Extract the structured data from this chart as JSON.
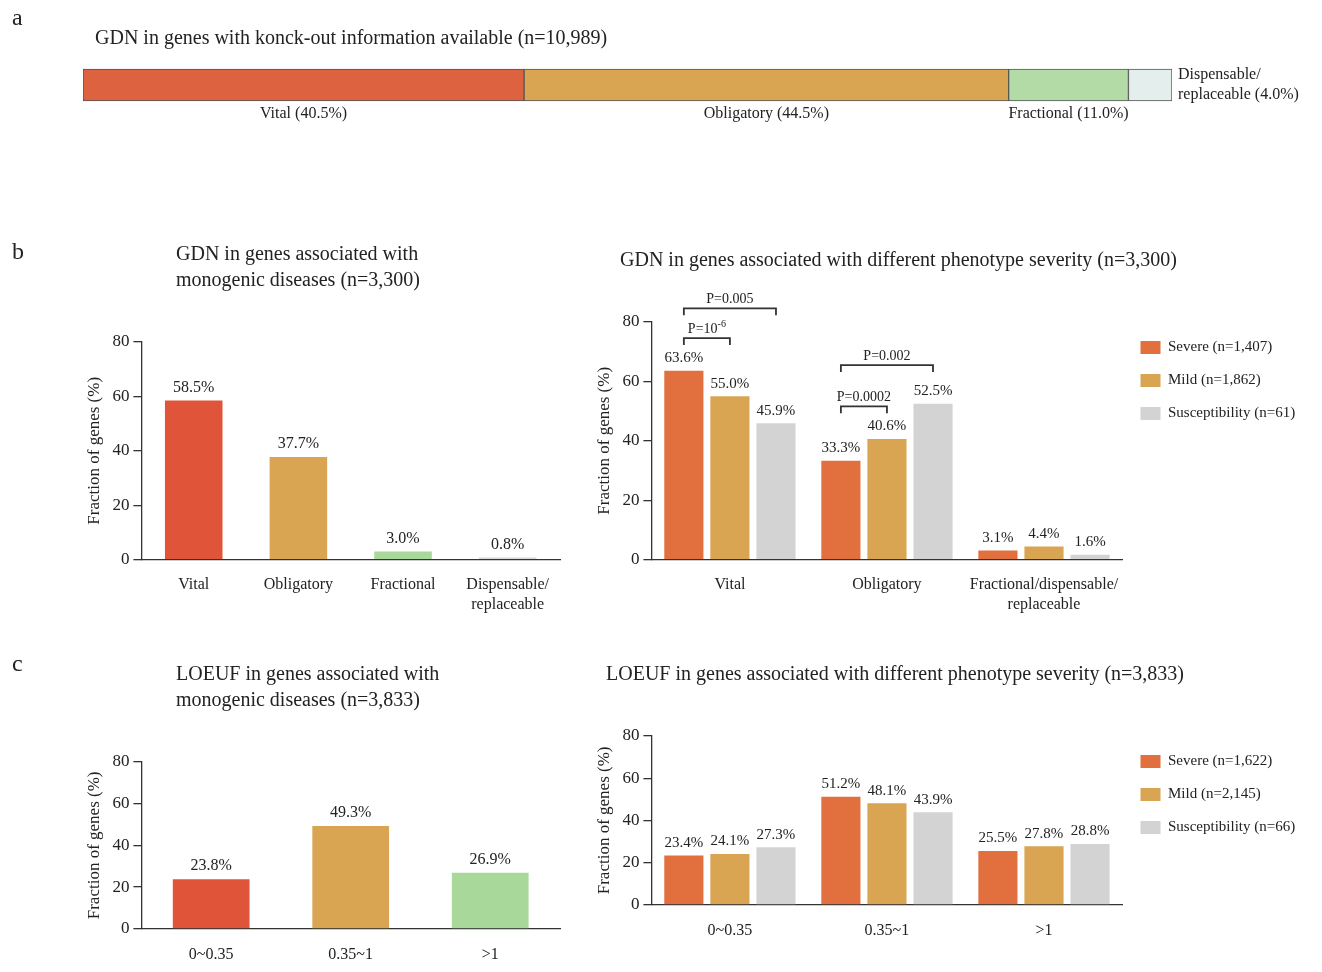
{
  "chart_data": [
    {
      "type": "bar",
      "orientation": "horizontal",
      "stacked": true,
      "title": "GDN in genes with konck-out information available (n=10,989)",
      "annotations": [
        "a"
      ],
      "categories": [
        null
      ],
      "tick_labels": false,
      "legend": false,
      "series": [
        {
          "color": "#dc6240",
          "values": [
            40.5
          ],
          "value_labels": [
            "Vital (40.5%)"
          ]
        },
        {
          "color": "#d9a552",
          "values": [
            44.5
          ],
          "value_labels": [
            "Obligatory (44.5%)"
          ]
        },
        {
          "color": "#b3dba6",
          "values": [
            11.0
          ],
          "value_labels": [
            "Fractional (11.0%)"
          ]
        },
        {
          "color": "#e3eeed",
          "values": [
            4.0
          ],
          "value_labels": [
            "Dispensable/ replaceable (4.0%)"
          ]
        }
      ]
    },
    {
      "type": "bar",
      "title": "GDN in genes associated with monogenic diseases (n=3,300)",
      "annotations": [
        "b"
      ],
      "ylabel": "Fraction of genes (%)",
      "categories": [
        "Vital",
        "Obligatory",
        "Fractional",
        "Dispensable/replaceable"
      ],
      "values": [
        58.5,
        37.7,
        3.0,
        0.8
      ],
      "colors": [
        "#e0553a",
        "#d9a552",
        "#a8d89a",
        "#d8d8d8"
      ],
      "value_labels": [
        "58.5%",
        "37.7%",
        "3.0%",
        "0.8%"
      ],
      "ylim": [
        0,
        80
      ],
      "yticks": [
        0,
        20,
        40,
        60,
        80
      ],
      "grid": false
    },
    {
      "type": "bar",
      "title": "GDN in genes associated with different phenotype severity (n=3,300)",
      "ylabel": "Fraction of genes (%)",
      "categories": [
        "Vital",
        "Obligatory",
        "Fractional/dispensable/replaceable"
      ],
      "ylim": [
        0,
        80
      ],
      "yticks": [
        0,
        20,
        40,
        60,
        80
      ],
      "grid": false,
      "legend": "top right",
      "annotations": [
        "P=0.005",
        "P=10$^{-6}$",
        "P=0.002",
        "P=0.0002"
      ],
      "series": [
        {
          "name": "Severe (n=1,407)",
          "color": "#e2703f",
          "values": [
            63.6,
            33.3,
            3.1
          ],
          "value_labels": [
            "63.6%",
            "33.3%",
            "3.1%"
          ]
        },
        {
          "name": "Mild (n=1,862)",
          "color": "#d9a552",
          "values": [
            55.0,
            40.6,
            4.4
          ],
          "value_labels": [
            "55.0%",
            "40.6%",
            "4.4%"
          ]
        },
        {
          "name": "Susceptibility (n=61)",
          "color": "#d3d3d3",
          "values": [
            45.9,
            52.5,
            1.6
          ],
          "value_labels": [
            "45.9%",
            "52.5%",
            "1.6%"
          ]
        }
      ]
    },
    {
      "type": "bar",
      "title": "LOEUF in genes associated with monogenic diseases (n=3,833)",
      "annotations": [
        "c"
      ],
      "ylabel": "Fraction of genes (%)",
      "categories": [
        "0~0.35",
        "0.35~1",
        ">1"
      ],
      "values": [
        23.8,
        49.3,
        26.9
      ],
      "colors": [
        "#e0553a",
        "#d9a552",
        "#a8d89a"
      ],
      "value_labels": [
        "23.8%",
        "49.3%",
        "26.9%"
      ],
      "ylim": [
        0,
        80
      ],
      "yticks": [
        0,
        20,
        40,
        60,
        80
      ],
      "grid": false
    },
    {
      "type": "bar",
      "title": "LOEUF in genes associated with different phenotype severity (n=3,833)",
      "ylabel": "Fraction of genes (%)",
      "categories": [
        "0~0.35",
        "0.35~1",
        ">1"
      ],
      "ylim": [
        0,
        80
      ],
      "yticks": [
        0,
        20,
        40,
        60,
        80
      ],
      "grid": false,
      "legend": "top right",
      "series": [
        {
          "name": "Severe (n=1,622)",
          "color": "#e2703f",
          "values": [
            23.4,
            51.2,
            25.5
          ],
          "value_labels": [
            "23.4%",
            "51.2%",
            "25.5%"
          ]
        },
        {
          "name": "Mild (n=2,145)",
          "color": "#d9a552",
          "values": [
            24.1,
            48.1,
            27.8
          ],
          "value_labels": [
            "24.1%",
            "48.1%",
            "27.8%"
          ]
        },
        {
          "name": "Susceptibility (n=66)",
          "color": "#d3d3d3",
          "values": [
            27.3,
            43.9,
            28.8
          ],
          "value_labels": [
            "27.3%",
            "43.9%",
            "28.8%"
          ]
        }
      ]
    }
  ]
}
